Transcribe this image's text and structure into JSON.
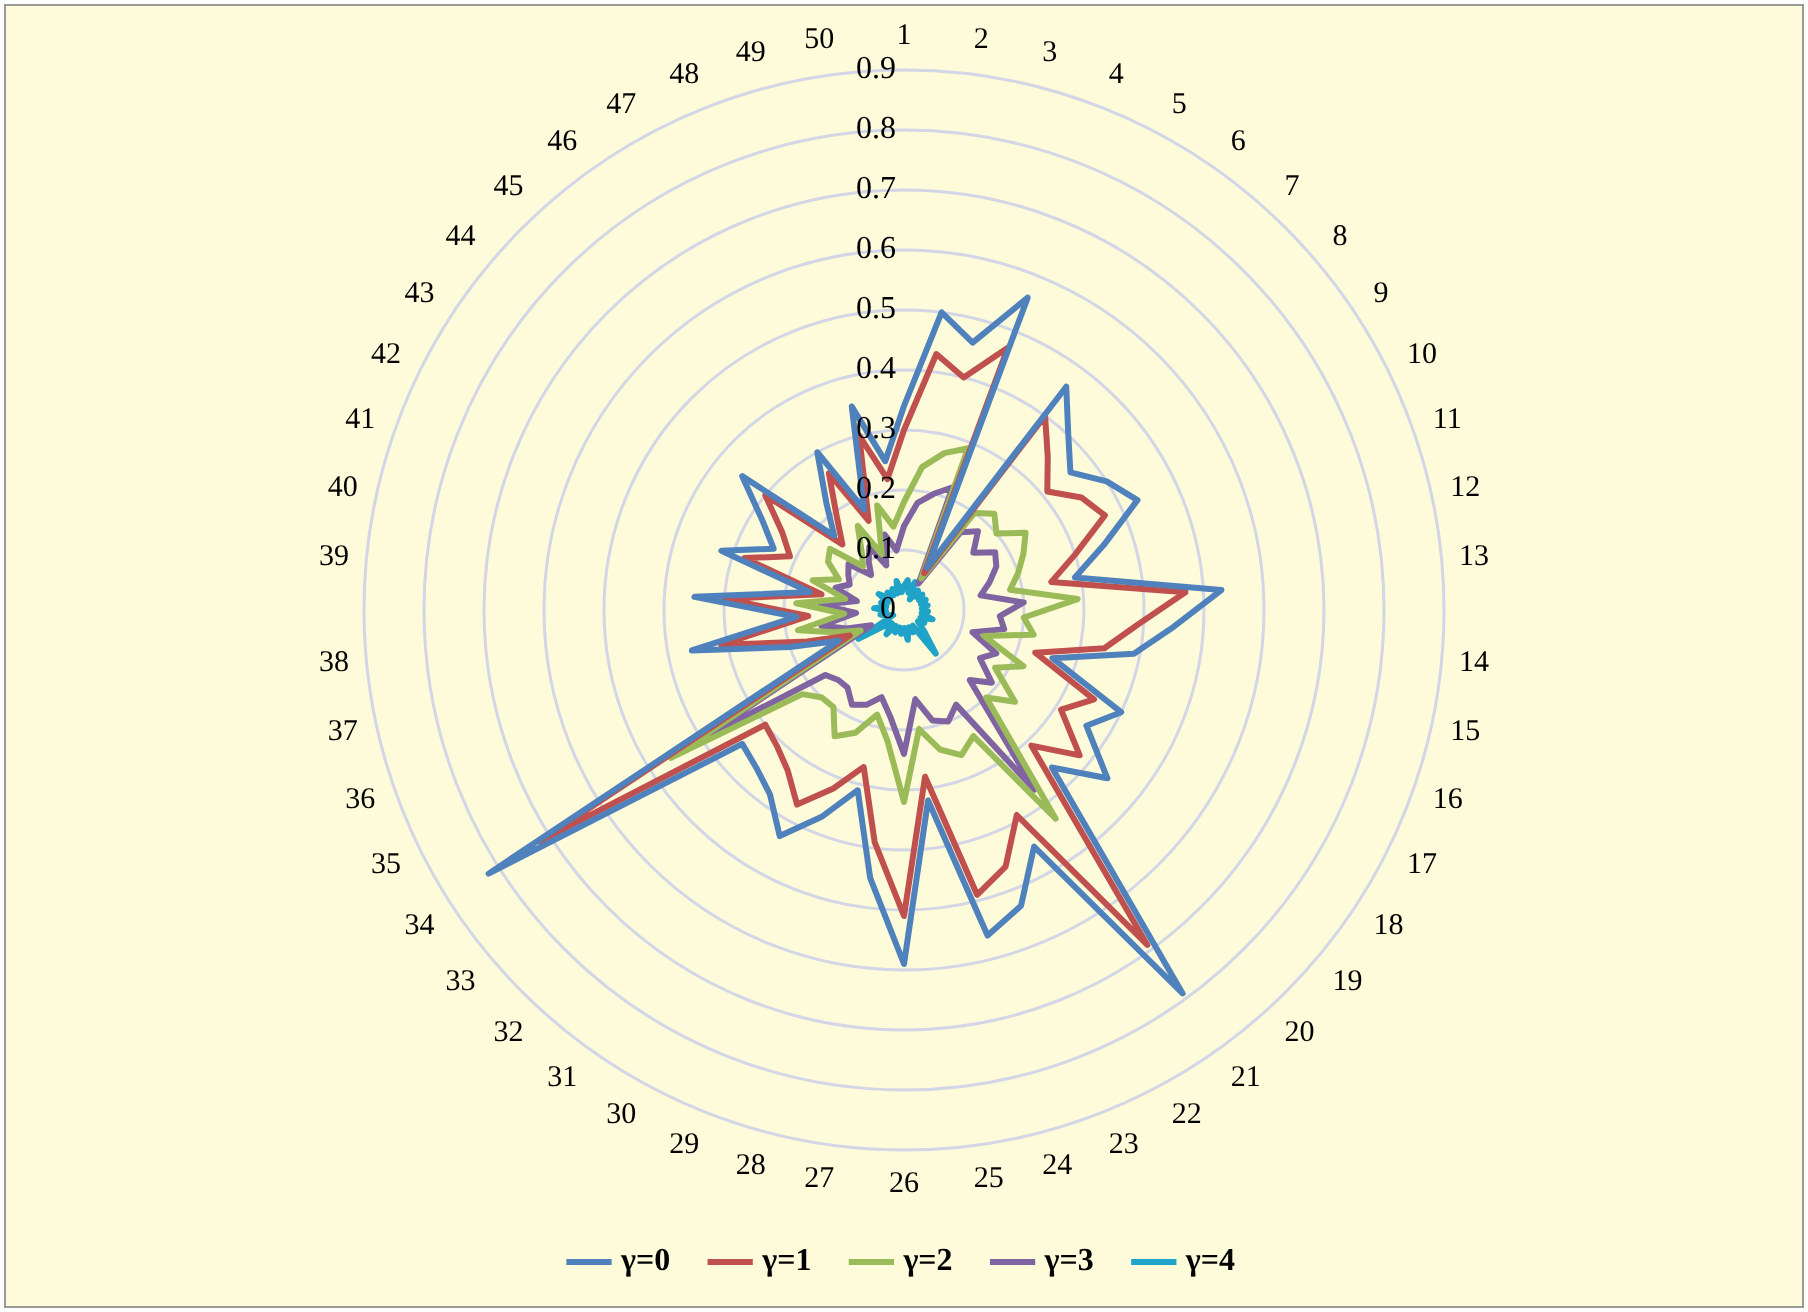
{
  "chart_data": {
    "type": "radar",
    "categories": [
      "1",
      "2",
      "3",
      "4",
      "5",
      "6",
      "7",
      "8",
      "9",
      "10",
      "11",
      "12",
      "13",
      "14",
      "15",
      "16",
      "17",
      "18",
      "19",
      "20",
      "21",
      "22",
      "23",
      "24",
      "25",
      "26",
      "27",
      "28",
      "29",
      "30",
      "31",
      "32",
      "33",
      "34",
      "35",
      "36",
      "37",
      "38",
      "39",
      "40",
      "41",
      "42",
      "43",
      "44",
      "45",
      "46",
      "47",
      "48",
      "49",
      "50"
    ],
    "ylim": [
      0,
      0.9
    ],
    "yticks": [
      0,
      0.1,
      0.2,
      0.3,
      0.4,
      0.5,
      0.6,
      0.7,
      0.8,
      0.9
    ],
    "grid": true,
    "legend": "bottom",
    "marker": "none",
    "series": [
      {
        "name": "γ=0",
        "color": "#4f81bd",
        "values": [
          0.34,
          0.5,
          0.46,
          0.56,
          0.08,
          0.46,
          0.4,
          0.36,
          0.4,
          0.43,
          0.35,
          0.29,
          0.53,
          0.45,
          0.39,
          0.26,
          0.4,
          0.36,
          0.44,
          0.36,
          0.79,
          0.45,
          0.53,
          0.56,
          0.32,
          0.59,
          0.45,
          0.31,
          0.37,
          0.43,
          0.38,
          0.36,
          0.35,
          0.82,
          0.12,
          0.2,
          0.36,
          0.18,
          0.35,
          0.16,
          0.32,
          0.24,
          0.28,
          0.35,
          0.17,
          0.22,
          0.3,
          0.18,
          0.35,
          0.25
        ]
      },
      {
        "name": "γ=1",
        "color": "#c0504d",
        "values": [
          0.3,
          0.43,
          0.4,
          0.47,
          0.07,
          0.4,
          0.35,
          0.31,
          0.35,
          0.37,
          0.3,
          0.25,
          0.47,
          0.39,
          0.34,
          0.23,
          0.35,
          0.31,
          0.38,
          0.31,
          0.69,
          0.39,
          0.46,
          0.49,
          0.28,
          0.51,
          0.39,
          0.27,
          0.32,
          0.37,
          0.33,
          0.31,
          0.3,
          0.72,
          0.1,
          0.17,
          0.31,
          0.16,
          0.3,
          0.14,
          0.28,
          0.21,
          0.24,
          0.3,
          0.15,
          0.19,
          0.26,
          0.16,
          0.3,
          0.22
        ]
      },
      {
        "name": "γ=2",
        "color": "#9bbb59",
        "values": [
          0.18,
          0.24,
          0.27,
          0.29,
          0.06,
          0.2,
          0.22,
          0.2,
          0.24,
          0.22,
          0.2,
          0.18,
          0.29,
          0.2,
          0.22,
          0.14,
          0.22,
          0.18,
          0.24,
          0.2,
          0.43,
          0.24,
          0.26,
          0.24,
          0.2,
          0.32,
          0.22,
          0.18,
          0.22,
          0.24,
          0.2,
          0.2,
          0.22,
          0.46,
          0.08,
          0.12,
          0.18,
          0.1,
          0.18,
          0.1,
          0.16,
          0.12,
          0.15,
          0.16,
          0.1,
          0.12,
          0.16,
          0.1,
          0.18,
          0.14
        ]
      },
      {
        "name": "γ=3",
        "color": "#8064a2",
        "values": [
          0.14,
          0.18,
          0.2,
          0.22,
          0.05,
          0.16,
          0.18,
          0.15,
          0.18,
          0.17,
          0.15,
          0.13,
          0.2,
          0.16,
          0.17,
          0.12,
          0.17,
          0.15,
          0.19,
          0.16,
          0.37,
          0.18,
          0.2,
          0.19,
          0.15,
          0.24,
          0.18,
          0.15,
          0.17,
          0.18,
          0.16,
          0.16,
          0.17,
          0.4,
          0.06,
          0.1,
          0.14,
          0.08,
          0.14,
          0.08,
          0.12,
          0.1,
          0.11,
          0.12,
          0.08,
          0.1,
          0.12,
          0.08,
          0.13,
          0.1
        ]
      },
      {
        "name": "γ=4",
        "color": "#1fa3c9",
        "values": [
          0.04,
          0.05,
          0.03,
          0.05,
          0.02,
          0.04,
          0.03,
          0.04,
          0.03,
          0.04,
          0.03,
          0.04,
          0.03,
          0.04,
          0.03,
          0.05,
          0.03,
          0.04,
          0.03,
          0.05,
          0.09,
          0.03,
          0.04,
          0.03,
          0.05,
          0.03,
          0.04,
          0.03,
          0.04,
          0.03,
          0.05,
          0.03,
          0.04,
          0.09,
          0.02,
          0.03,
          0.04,
          0.03,
          0.05,
          0.03,
          0.04,
          0.03,
          0.05,
          0.03,
          0.04,
          0.03,
          0.04,
          0.03,
          0.05,
          0.03
        ]
      }
    ]
  }
}
